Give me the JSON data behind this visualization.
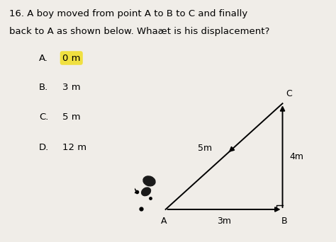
{
  "title_line1": "16. A boy moved from point A to B to C and finally",
  "title_line2": "back to A as shown below. Whaæt is his displacement?",
  "options": [
    {
      "label": "A.",
      "text": "0 m",
      "highlighted": true
    },
    {
      "label": "B.",
      "text": "3 m",
      "highlighted": false
    },
    {
      "label": "C.",
      "text": "5 m",
      "highlighted": false
    },
    {
      "label": "D.",
      "text": "12 m",
      "highlighted": false
    }
  ],
  "highlight_color": "#f0e040",
  "bg_color": "#f0ede8",
  "point_A": [
    0.0,
    0.0
  ],
  "point_B": [
    3.0,
    0.0
  ],
  "point_C": [
    3.0,
    4.0
  ],
  "label_AB": "3m",
  "label_BC": "4m",
  "label_AC": "5m",
  "fig_width": 4.74,
  "fig_height": 3.42,
  "dpi": 100
}
